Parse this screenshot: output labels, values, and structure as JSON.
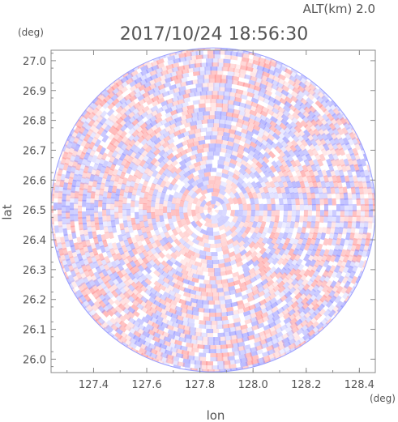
{
  "chart_data": {
    "type": "heatmap",
    "title": "2017/10/24 18:56:30",
    "altitude_label": "ALT(km) 2.0",
    "xlabel": "lon",
    "ylabel": "lat",
    "x_unit": "(deg)",
    "y_unit": "(deg)",
    "xlim": [
      127.24,
      128.46
    ],
    "ylim": [
      25.955,
      27.035
    ],
    "x_ticks": [
      "127.4",
      "127.6",
      "127.8",
      "128.0",
      "128.2",
      "128.4"
    ],
    "x_tick_values": [
      127.4,
      127.6,
      127.8,
      128.0,
      128.2,
      128.4
    ],
    "y_ticks": [
      "26.0",
      "26.1",
      "26.2",
      "26.3",
      "26.4",
      "26.5",
      "26.6",
      "26.7",
      "26.8",
      "26.9",
      "27.0"
    ],
    "y_tick_values": [
      26.0,
      26.1,
      26.2,
      26.3,
      26.4,
      26.5,
      26.6,
      26.7,
      26.8,
      26.9,
      27.0
    ],
    "radar_center": {
      "lon": 127.85,
      "lat": 26.5
    },
    "radar_extent": {
      "lon_radius": 0.61,
      "lat_radius": 0.545
    },
    "colors": {
      "positive": "#ff8c8c",
      "negative": "#8c8cff",
      "axis": "#888888",
      "text": "#555555"
    },
    "grid": false,
    "colorbar": false
  }
}
